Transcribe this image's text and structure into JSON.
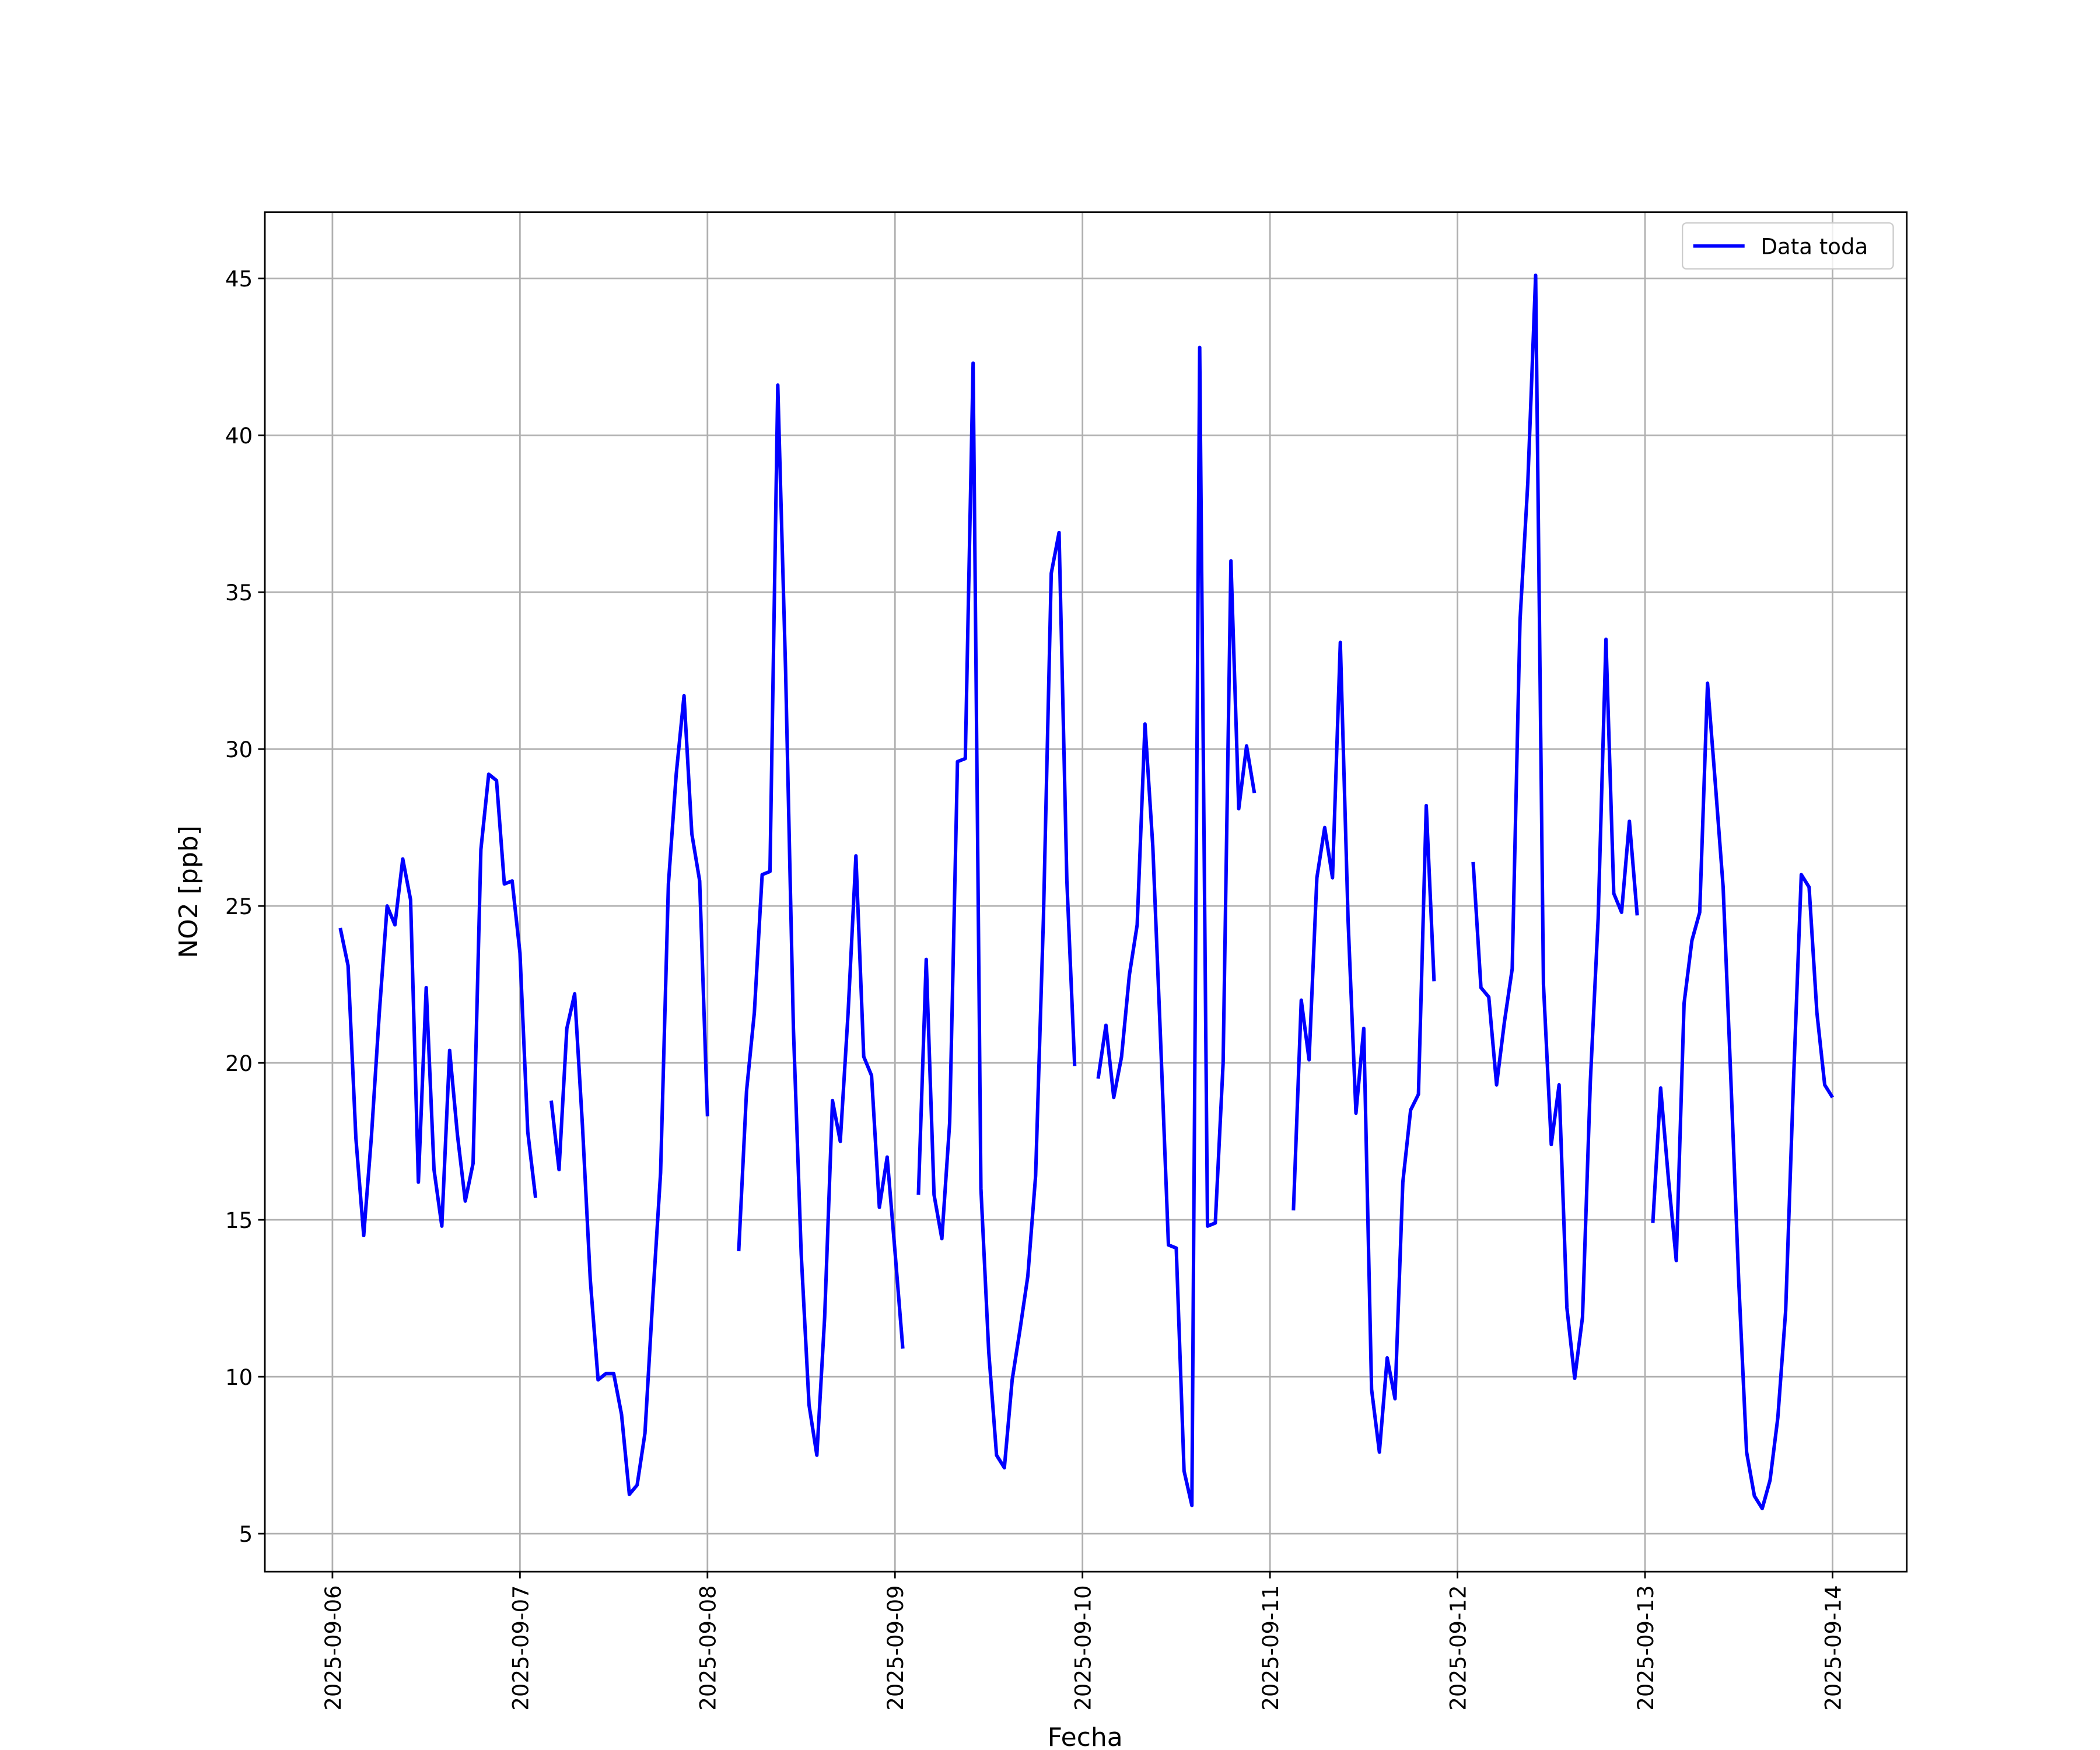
{
  "chart_data": {
    "type": "line",
    "x_label": "Fecha",
    "y_label": "NO2 [ppb]",
    "x": [
      "2025-09-06 01:00",
      "2025-09-06 02:00",
      "2025-09-06 03:00",
      "2025-09-06 04:00",
      "2025-09-06 05:00",
      "2025-09-06 06:00",
      "2025-09-06 07:00",
      "2025-09-06 08:00",
      "2025-09-06 09:00",
      "2025-09-06 10:00",
      "2025-09-06 11:00",
      "2025-09-06 12:00",
      "2025-09-06 13:00",
      "2025-09-06 14:00",
      "2025-09-06 15:00",
      "2025-09-06 16:00",
      "2025-09-06 17:00",
      "2025-09-06 18:00",
      "2025-09-06 19:00",
      "2025-09-06 20:00",
      "2025-09-06 21:00",
      "2025-09-06 22:00",
      "2025-09-06 23:00",
      "2025-09-07 00:00",
      "2025-09-07 01:00",
      "2025-09-07 02:00",
      "2025-09-07 03:00",
      "2025-09-07 04:00",
      "2025-09-07 05:00",
      "2025-09-07 06:00",
      "2025-09-07 07:00",
      "2025-09-07 08:00",
      "2025-09-07 09:00",
      "2025-09-07 10:00",
      "2025-09-07 11:00",
      "2025-09-07 12:00",
      "2025-09-07 13:00",
      "2025-09-07 14:00",
      "2025-09-07 15:00",
      "2025-09-07 16:00",
      "2025-09-07 17:00",
      "2025-09-07 18:00",
      "2025-09-07 19:00",
      "2025-09-07 20:00",
      "2025-09-07 21:00",
      "2025-09-07 22:00",
      "2025-09-07 23:00",
      "2025-09-08 00:00",
      "2025-09-08 01:00",
      "2025-09-08 02:00",
      "2025-09-08 03:00",
      "2025-09-08 04:00",
      "2025-09-08 05:00",
      "2025-09-08 06:00",
      "2025-09-08 07:00",
      "2025-09-08 08:00",
      "2025-09-08 09:00",
      "2025-09-08 10:00",
      "2025-09-08 11:00",
      "2025-09-08 12:00",
      "2025-09-08 13:00",
      "2025-09-08 14:00",
      "2025-09-08 15:00",
      "2025-09-08 16:00",
      "2025-09-08 17:00",
      "2025-09-08 18:00",
      "2025-09-08 19:00",
      "2025-09-08 20:00",
      "2025-09-08 21:00",
      "2025-09-08 22:00",
      "2025-09-08 23:00",
      "2025-09-09 00:00",
      "2025-09-09 01:00",
      "2025-09-09 02:00",
      "2025-09-09 03:00",
      "2025-09-09 04:00",
      "2025-09-09 05:00",
      "2025-09-09 06:00",
      "2025-09-09 07:00",
      "2025-09-09 08:00",
      "2025-09-09 09:00",
      "2025-09-09 10:00",
      "2025-09-09 11:00",
      "2025-09-09 12:00",
      "2025-09-09 13:00",
      "2025-09-09 14:00",
      "2025-09-09 15:00",
      "2025-09-09 16:00",
      "2025-09-09 17:00",
      "2025-09-09 18:00",
      "2025-09-09 19:00",
      "2025-09-09 20:00",
      "2025-09-09 21:00",
      "2025-09-09 22:00",
      "2025-09-09 23:00",
      "2025-09-10 00:00",
      "2025-09-10 01:00",
      "2025-09-10 02:00",
      "2025-09-10 03:00",
      "2025-09-10 04:00",
      "2025-09-10 05:00",
      "2025-09-10 06:00",
      "2025-09-10 07:00",
      "2025-09-10 08:00",
      "2025-09-10 09:00",
      "2025-09-10 10:00",
      "2025-09-10 11:00",
      "2025-09-10 12:00",
      "2025-09-10 13:00",
      "2025-09-10 14:00",
      "2025-09-10 15:00",
      "2025-09-10 16:00",
      "2025-09-10 17:00",
      "2025-09-10 18:00",
      "2025-09-10 19:00",
      "2025-09-10 20:00",
      "2025-09-10 21:00",
      "2025-09-10 22:00",
      "2025-09-10 23:00",
      "2025-09-11 00:00",
      "2025-09-11 01:00",
      "2025-09-11 02:00",
      "2025-09-11 03:00",
      "2025-09-11 04:00",
      "2025-09-11 05:00",
      "2025-09-11 06:00",
      "2025-09-11 07:00",
      "2025-09-11 08:00",
      "2025-09-11 09:00",
      "2025-09-11 10:00",
      "2025-09-11 11:00",
      "2025-09-11 12:00",
      "2025-09-11 13:00",
      "2025-09-11 14:00",
      "2025-09-11 15:00",
      "2025-09-11 16:00",
      "2025-09-11 17:00",
      "2025-09-11 18:00",
      "2025-09-11 19:00",
      "2025-09-11 20:00",
      "2025-09-11 21:00",
      "2025-09-11 22:00",
      "2025-09-11 23:00",
      "2025-09-12 00:00",
      "2025-09-12 01:00",
      "2025-09-12 02:00",
      "2025-09-12 03:00",
      "2025-09-12 04:00",
      "2025-09-12 05:00",
      "2025-09-12 06:00",
      "2025-09-12 07:00",
      "2025-09-12 08:00",
      "2025-09-12 09:00",
      "2025-09-12 10:00",
      "2025-09-12 11:00",
      "2025-09-12 12:00",
      "2025-09-12 13:00",
      "2025-09-12 14:00",
      "2025-09-12 15:00",
      "2025-09-12 16:00",
      "2025-09-12 17:00",
      "2025-09-12 18:00",
      "2025-09-12 19:00",
      "2025-09-12 20:00",
      "2025-09-12 21:00",
      "2025-09-12 22:00",
      "2025-09-12 23:00",
      "2025-09-13 00:00",
      "2025-09-13 01:00",
      "2025-09-13 02:00",
      "2025-09-13 03:00",
      "2025-09-13 04:00",
      "2025-09-13 05:00",
      "2025-09-13 06:00",
      "2025-09-13 07:00",
      "2025-09-13 08:00",
      "2025-09-13 09:00",
      "2025-09-13 10:00",
      "2025-09-13 11:00",
      "2025-09-13 12:00",
      "2025-09-13 13:00",
      "2025-09-13 14:00",
      "2025-09-13 15:00",
      "2025-09-13 16:00",
      "2025-09-13 17:00",
      "2025-09-13 18:00",
      "2025-09-13 19:00",
      "2025-09-13 20:00",
      "2025-09-13 21:00",
      "2025-09-13 22:00",
      "2025-09-13 23:00",
      "2025-09-14 00:00"
    ],
    "series": [
      {
        "name": "Data toda",
        "color": "#0000ff",
        "values": [
          24.3,
          23.1,
          17.6,
          14.5,
          17.7,
          21.6,
          25.0,
          24.4,
          26.5,
          25.2,
          16.2,
          22.4,
          16.6,
          14.8,
          20.4,
          17.7,
          15.6,
          16.8,
          26.8,
          29.2,
          29.0,
          25.7,
          25.8,
          23.5,
          17.8,
          15.7,
          null,
          18.8,
          16.6,
          21.1,
          22.2,
          18.0,
          13.1,
          9.9,
          10.1,
          10.1,
          8.8,
          6.25,
          6.55,
          8.2,
          12.5,
          16.5,
          25.7,
          29.2,
          31.7,
          27.3,
          25.8,
          18.3,
          null,
          null,
          null,
          14.0,
          19.1,
          21.6,
          26.0,
          26.1,
          41.6,
          32.5,
          21.1,
          13.9,
          9.1,
          7.5,
          11.9,
          18.8,
          17.5,
          21.6,
          26.6,
          20.2,
          19.6,
          15.4,
          17.0,
          14.0,
          10.9,
          null,
          15.8,
          23.3,
          15.8,
          14.4,
          18.1,
          29.6,
          29.7,
          42.3,
          16.0,
          10.8,
          7.5,
          7.1,
          9.9,
          11.5,
          13.2,
          16.4,
          24.6,
          35.6,
          36.9,
          25.8,
          19.9,
          null,
          null,
          19.5,
          21.2,
          18.9,
          20.2,
          22.8,
          24.4,
          30.8,
          26.9,
          20.7,
          14.2,
          14.1,
          7.0,
          5.9,
          42.8,
          14.8,
          14.9,
          20.0,
          36.0,
          28.1,
          30.1,
          28.6,
          null,
          null,
          null,
          null,
          15.3,
          22.0,
          20.1,
          25.9,
          27.5,
          25.9,
          33.4,
          24.5,
          18.4,
          21.1,
          9.6,
          7.6,
          10.6,
          9.3,
          16.2,
          18.5,
          19.0,
          28.2,
          22.6,
          null,
          null,
          null,
          null,
          26.4,
          22.4,
          22.1,
          19.3,
          21.3,
          23.0,
          34.1,
          38.5,
          45.1,
          22.5,
          17.4,
          19.3,
          12.2,
          9.95,
          11.9,
          19.4,
          24.6,
          33.5,
          25.4,
          24.8,
          27.7,
          24.7,
          null,
          14.9,
          19.2,
          16.3,
          13.7,
          21.9,
          23.9,
          24.8,
          32.1,
          28.9,
          25.6,
          19.4,
          13.0,
          7.6,
          6.2,
          5.8,
          6.7,
          8.7,
          12.1,
          19.4,
          26.0,
          25.6,
          21.6,
          19.3,
          18.9
        ]
      }
    ],
    "xlim": [
      "2025-09-05 15:21",
      "2025-09-14 09:30"
    ],
    "xticks": [
      "2025-09-06",
      "2025-09-07",
      "2025-09-08",
      "2025-09-09",
      "2025-09-10",
      "2025-09-11",
      "2025-09-12",
      "2025-09-13",
      "2025-09-14"
    ],
    "ylim": [
      3.79,
      47.11
    ],
    "yticks": [
      5,
      10,
      15,
      20,
      25,
      30,
      35,
      40,
      45
    ],
    "grid": true,
    "legend": "upper right"
  }
}
